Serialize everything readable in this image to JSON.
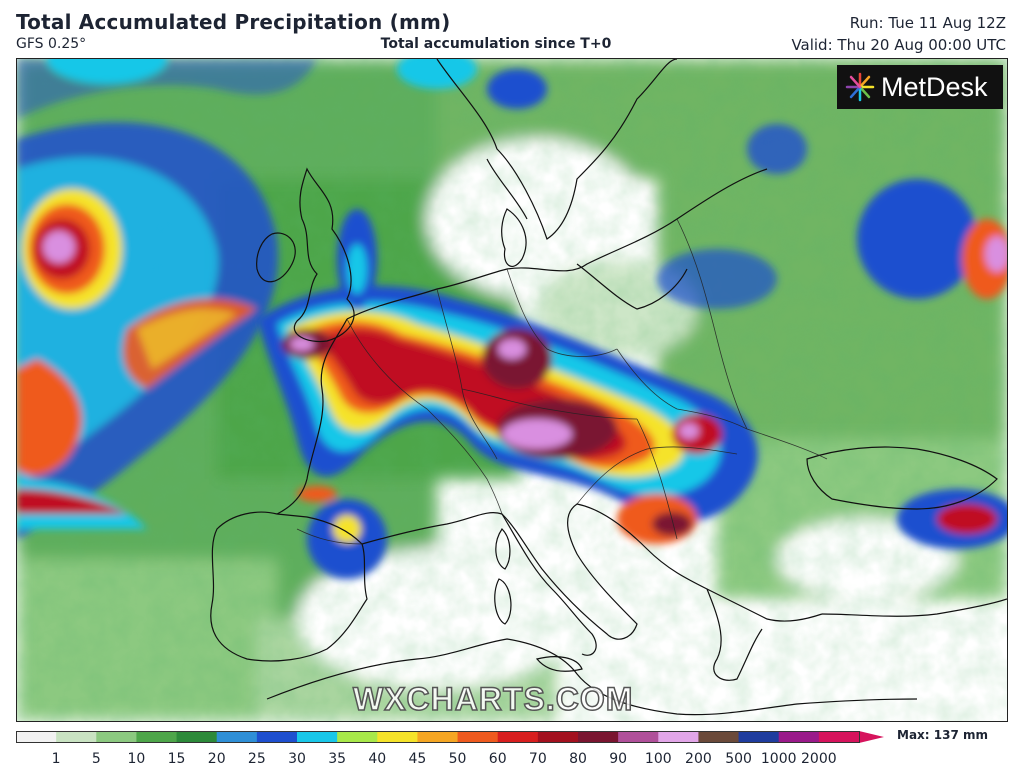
{
  "header": {
    "title": "Total Accumulated Precipitation (mm)",
    "model": "GFS 0.25°",
    "subtitle": "Total accumulation since T+0",
    "run": "Run: Tue 11 Aug 12Z",
    "valid": "Valid: Thu 20 Aug 00:00 UTC"
  },
  "brand": {
    "name": "MetDesk",
    "icon": "metdesk-starburst-icon"
  },
  "watermark": "WXCHARTS.COM",
  "legend": {
    "ticks": [
      "1",
      "5",
      "10",
      "15",
      "20",
      "25",
      "30",
      "35",
      "40",
      "45",
      "50",
      "60",
      "70",
      "80",
      "90",
      "100",
      "200",
      "500",
      "1000",
      "2000"
    ],
    "max_label": "Max: 137 mm",
    "colors": [
      "#f2f2f2",
      "#c9e3c2",
      "#8cc980",
      "#4ea64a",
      "#2d8a3a",
      "#2f8fd6",
      "#1e4fcf",
      "#19c7e8",
      "#a8e84a",
      "#f5e32a",
      "#f5a623",
      "#ef5a1e",
      "#d81e1e",
      "#a3101e",
      "#7a1530",
      "#b0509a",
      "#e2a6e8",
      "#6b4a3a",
      "#1f3c9e",
      "#9a1a8a",
      "#d6135c"
    ]
  },
  "map": {
    "background": "#ffffff",
    "coastline_color": "#111111",
    "precipitation_scale": [
      "#e6efe3",
      "#6fb564",
      "#2f8a3c",
      "#1e4fcf",
      "#19c7e8",
      "#f5e32a",
      "#ef5a1e",
      "#c01020",
      "#7a1530",
      "#d98fe0"
    ]
  }
}
